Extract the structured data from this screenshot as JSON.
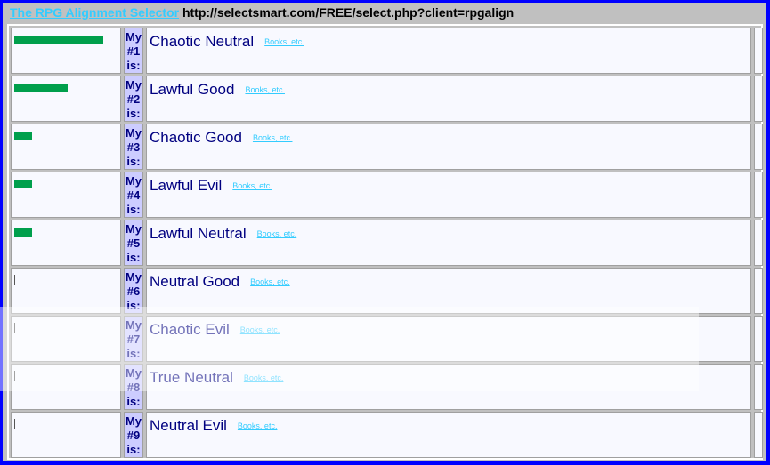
{
  "header": {
    "title_link": "The RPG Alignment Selector",
    "url": "http://selectsmart.com/FREE/select.php?client=rpgalign"
  },
  "colors": {
    "bar": "#009f4c",
    "rank_cell": "#ccccff",
    "name_text": "#000080",
    "link": "#33ccff",
    "border": "#0000ff"
  },
  "results": [
    {
      "my": "My",
      "rank": "#1",
      "is": "is:",
      "name": "Chaotic Neutral",
      "link": "Books, etc.",
      "score_pct": 100
    },
    {
      "my": "My",
      "rank": "#2",
      "is": "is:",
      "name": "Lawful Good",
      "link": "Books, etc.",
      "score_pct": 60
    },
    {
      "my": "My",
      "rank": "#3",
      "is": "is:",
      "name": "Chaotic Good",
      "link": "Books, etc.",
      "score_pct": 20
    },
    {
      "my": "My",
      "rank": "#4",
      "is": "is:",
      "name": "Lawful Evil",
      "link": "Books, etc.",
      "score_pct": 20
    },
    {
      "my": "My",
      "rank": "#5",
      "is": "is:",
      "name": "Lawful Neutral",
      "link": "Books, etc.",
      "score_pct": 20
    },
    {
      "my": "My",
      "rank": "#6",
      "is": "is:",
      "name": "Neutral Good",
      "link": "Books, etc.",
      "score_pct": 0
    },
    {
      "my": "My",
      "rank": "#7",
      "is": "is:",
      "name": "Chaotic Evil",
      "link": "Books, etc.",
      "score_pct": 0
    },
    {
      "my": "My",
      "rank": "#8",
      "is": "is:",
      "name": "True Neutral",
      "link": "Books, etc.",
      "score_pct": 0
    },
    {
      "my": "My",
      "rank": "#9",
      "is": "is:",
      "name": "Neutral Evil",
      "link": "Books, etc.",
      "score_pct": 0
    }
  ]
}
